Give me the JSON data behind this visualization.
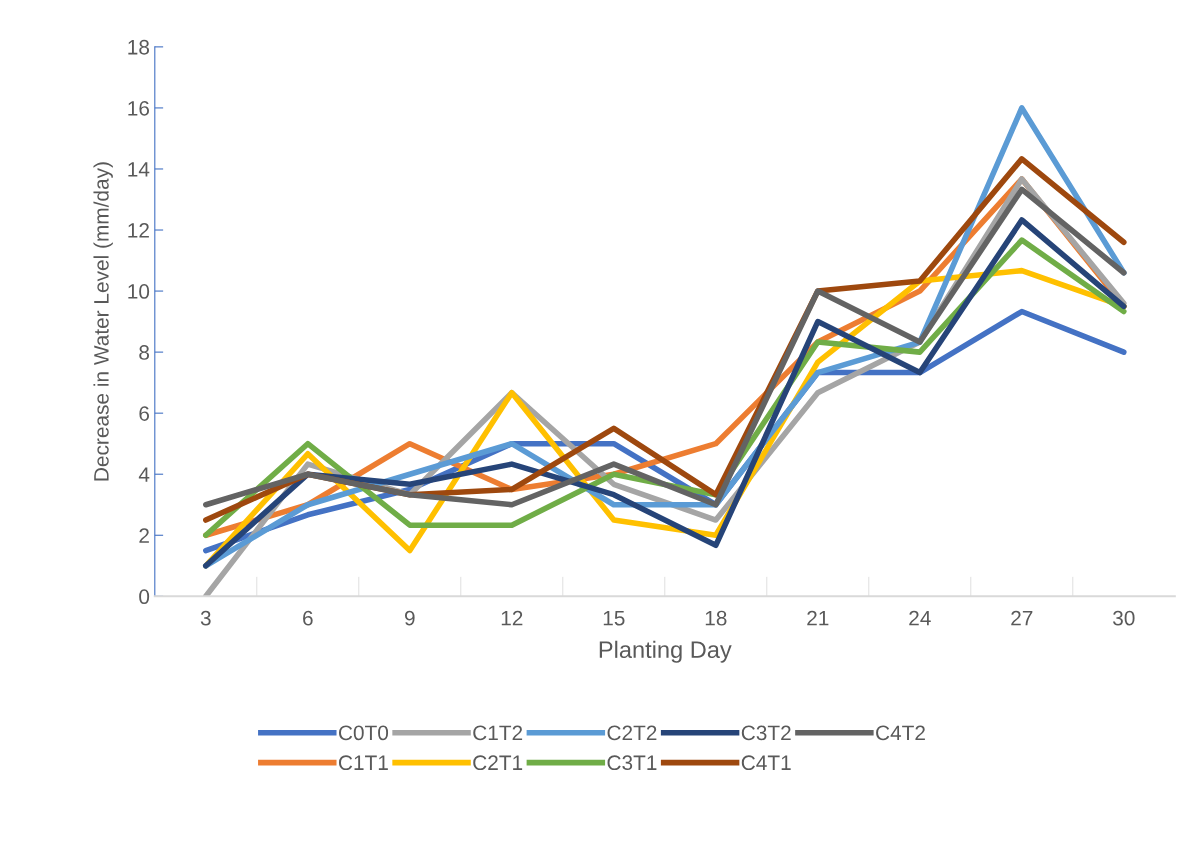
{
  "chart_data": {
    "type": "line",
    "xlabel": "Planting Day",
    "ylabel": "Decrease in Water Level (mm/day)",
    "categories": [
      "3",
      "6",
      "9",
      "12",
      "15",
      "18",
      "21",
      "24",
      "27",
      "30"
    ],
    "ylim": [
      0,
      18
    ],
    "yticks": [
      0,
      2,
      4,
      6,
      8,
      10,
      12,
      14,
      16,
      18
    ],
    "grid": false,
    "legend": "bottom",
    "marker": "none",
    "line_style": "solid",
    "series": [
      {
        "name": "C0T0",
        "color": "#4472c4",
        "values": [
          1.5,
          2.67,
          3.5,
          5,
          5,
          3,
          7.33,
          7.33,
          9.33,
          8
        ]
      },
      {
        "name": "C1T1",
        "color": "#ed7d31",
        "values": [
          2,
          3,
          5,
          3.5,
          4,
          5,
          8.33,
          10,
          13.67,
          9.5
        ]
      },
      {
        "name": "C1T2",
        "color": "#a5a5a5",
        "values": [
          0,
          4.33,
          3.33,
          6.67,
          3.67,
          2.5,
          6.67,
          8.33,
          13.67,
          9.6
        ]
      },
      {
        "name": "C2T1",
        "color": "#ffc000",
        "values": [
          1,
          4.67,
          1.5,
          6.67,
          2.5,
          2,
          7.67,
          10.33,
          10.67,
          9.5
        ]
      },
      {
        "name": "C2T2",
        "color": "#5b9bd5",
        "values": [
          1,
          3,
          4,
          5,
          3,
          3,
          7.33,
          8.33,
          16,
          10.6
        ]
      },
      {
        "name": "C3T1",
        "color": "#70ad47",
        "values": [
          2,
          5,
          2.33,
          2.33,
          4,
          3.33,
          8.33,
          8,
          11.67,
          9.33
        ]
      },
      {
        "name": "C3T2",
        "color": "#264478",
        "values": [
          1,
          4,
          3.67,
          4.33,
          3.33,
          1.67,
          9,
          7.33,
          12.33,
          9.5
        ]
      },
      {
        "name": "C4T1",
        "color": "#9e480e",
        "values": [
          2.5,
          4,
          3.33,
          3.5,
          5.5,
          3.33,
          10,
          10.33,
          14.33,
          11.6
        ]
      },
      {
        "name": "C4T2",
        "color": "#636363",
        "values": [
          3,
          4,
          3.33,
          3,
          4.33,
          3,
          10,
          8.33,
          13.33,
          10.6
        ]
      }
    ]
  }
}
